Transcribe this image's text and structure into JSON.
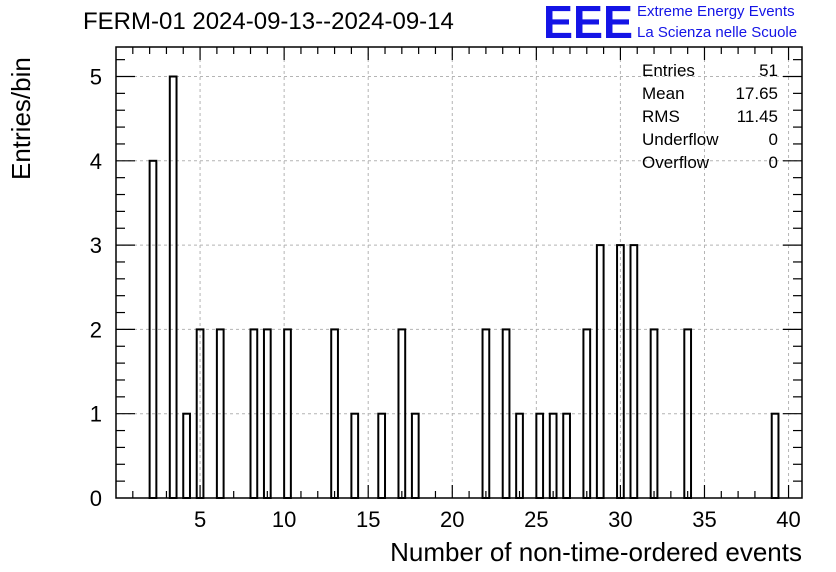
{
  "header": {
    "title": "FERM-01 2024-09-13--2024-09-14",
    "logo_text": "EEE",
    "logo_line1": "Extreme Energy Events",
    "logo_line2": "La Scienza nelle Scuole"
  },
  "stats": [
    {
      "label": "Entries",
      "value": "51"
    },
    {
      "label": "Mean",
      "value": "17.65"
    },
    {
      "label": "RMS",
      "value": "11.45"
    },
    {
      "label": "Underflow",
      "value": "0"
    },
    {
      "label": "Overflow",
      "value": "0"
    }
  ],
  "colors": {
    "logo_blue": "#1414e6",
    "grid": "#b4b4b4",
    "line": "#000000"
  },
  "chart_data": {
    "type": "bar",
    "title": "FERM-01 2024-09-13--2024-09-14",
    "xlabel": "Number of non-time-ordered events",
    "ylabel": "Entries/bin",
    "xlim": [
      0,
      40.8
    ],
    "ylim": [
      0,
      5.35
    ],
    "bin_width": 0.4,
    "x_ticks": [
      5,
      10,
      15,
      20,
      25,
      30,
      35,
      40
    ],
    "y_ticks": [
      0,
      1,
      2,
      3,
      4,
      5
    ],
    "grid": true,
    "bins": [
      {
        "x": 2.0,
        "y": 4
      },
      {
        "x": 3.2,
        "y": 5
      },
      {
        "x": 4.0,
        "y": 1
      },
      {
        "x": 4.8,
        "y": 2
      },
      {
        "x": 6.0,
        "y": 2
      },
      {
        "x": 8.0,
        "y": 2
      },
      {
        "x": 8.8,
        "y": 2
      },
      {
        "x": 10.0,
        "y": 2
      },
      {
        "x": 12.8,
        "y": 2
      },
      {
        "x": 14.0,
        "y": 1
      },
      {
        "x": 15.6,
        "y": 1
      },
      {
        "x": 16.8,
        "y": 2
      },
      {
        "x": 17.6,
        "y": 1
      },
      {
        "x": 21.8,
        "y": 2
      },
      {
        "x": 23.0,
        "y": 2
      },
      {
        "x": 23.8,
        "y": 1
      },
      {
        "x": 25.0,
        "y": 1
      },
      {
        "x": 25.8,
        "y": 1
      },
      {
        "x": 26.6,
        "y": 1
      },
      {
        "x": 27.8,
        "y": 2
      },
      {
        "x": 28.6,
        "y": 3
      },
      {
        "x": 29.8,
        "y": 3
      },
      {
        "x": 30.6,
        "y": 3
      },
      {
        "x": 31.8,
        "y": 2
      },
      {
        "x": 33.8,
        "y": 2
      },
      {
        "x": 39.0,
        "y": 1
      }
    ]
  }
}
